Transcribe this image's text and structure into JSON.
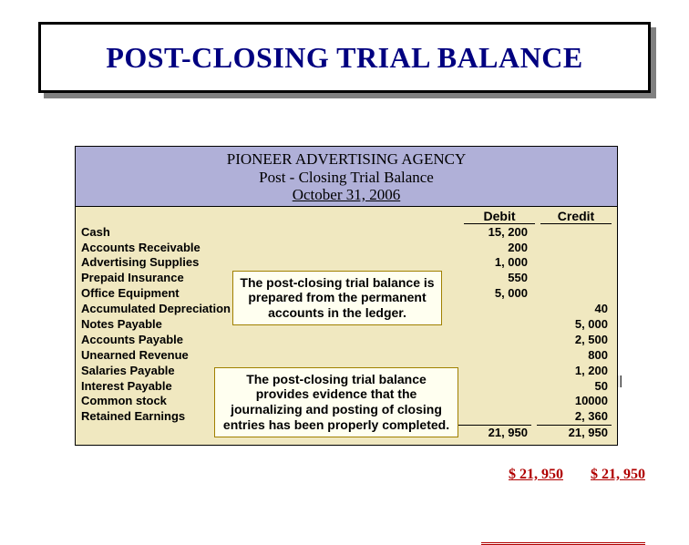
{
  "title": "POST-CLOSING TRIAL BALANCE",
  "header": {
    "company": "PIONEER ADVERTISING AGENCY",
    "report": "Post - Closing Trial Balance",
    "date": "October 31, 2006"
  },
  "columns": {
    "debit": "Debit",
    "credit": "Credit"
  },
  "accounts": [
    {
      "name": "Cash",
      "debit": "15, 200",
      "credit": ""
    },
    {
      "name": "Accounts Receivable",
      "debit": "200",
      "credit": ""
    },
    {
      "name": "Advertising Supplies",
      "debit": "1, 000",
      "credit": ""
    },
    {
      "name": "Prepaid Insurance",
      "debit": "550",
      "credit": ""
    },
    {
      "name": "Office Equipment",
      "debit": "5, 000",
      "credit": ""
    },
    {
      "name": "Accumulated Depreciation — Office Equipment",
      "debit": "",
      "credit": "40"
    },
    {
      "name": "Notes Payable",
      "debit": "",
      "credit": "5, 000"
    },
    {
      "name": "Accounts Payable",
      "debit": "",
      "credit": "2, 500"
    },
    {
      "name": "Unearned Revenue",
      "debit": "",
      "credit": "800"
    },
    {
      "name": "Salaries Payable",
      "debit": "",
      "credit": "1, 200"
    },
    {
      "name": "Interest Payable",
      "debit": "",
      "credit": "50"
    },
    {
      "name": "Common stock",
      "debit": "",
      "credit": "10000"
    },
    {
      "name": "Retained Earnings",
      "debit": "",
      "credit": "2, 360"
    }
  ],
  "totals": {
    "debit": "21, 950",
    "credit": "21, 950"
  },
  "final": {
    "debit": "$ 21, 950",
    "credit": "$ 21, 950"
  },
  "callout1": "The post-closing trial balance is prepared from the permanent accounts in the ledger.",
  "callout2": "The post-closing trial balance provides evidence that the journalizing and posting of closing entries has been properly completed.",
  "colors": {
    "title_text": "#000080",
    "header_bg": "#b0b0d8",
    "body_bg": "#f0e8c0",
    "callout_bg": "#fffff0",
    "callout_border": "#a08000",
    "final_color": "#b00000"
  }
}
